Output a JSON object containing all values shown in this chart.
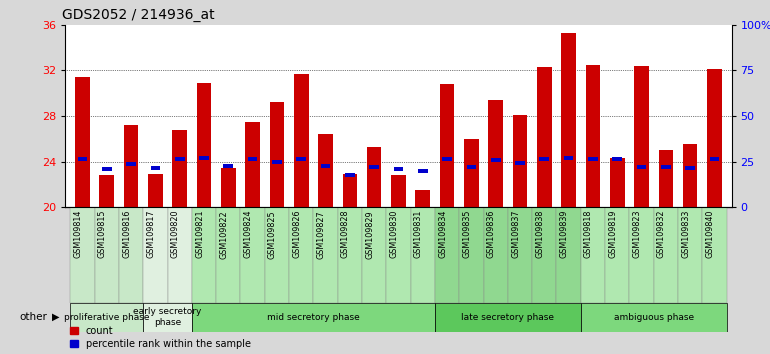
{
  "title": "GDS2052 / 214936_at",
  "samples": [
    "GSM109814",
    "GSM109815",
    "GSM109816",
    "GSM109817",
    "GSM109820",
    "GSM109821",
    "GSM109822",
    "GSM109824",
    "GSM109825",
    "GSM109826",
    "GSM109827",
    "GSM109828",
    "GSM109829",
    "GSM109830",
    "GSM109831",
    "GSM109834",
    "GSM109835",
    "GSM109836",
    "GSM109837",
    "GSM109838",
    "GSM109839",
    "GSM109818",
    "GSM109819",
    "GSM109823",
    "GSM109832",
    "GSM109833",
    "GSM109840"
  ],
  "count": [
    31.4,
    22.8,
    27.2,
    22.9,
    26.8,
    30.9,
    23.4,
    27.5,
    29.2,
    31.7,
    26.4,
    22.9,
    25.3,
    22.8,
    21.5,
    30.8,
    26.0,
    29.4,
    28.1,
    32.3,
    35.3,
    32.5,
    24.3,
    32.4,
    25.0,
    25.5,
    32.1
  ],
  "percentile": [
    24.2,
    23.3,
    23.8,
    23.4,
    24.2,
    24.3,
    23.6,
    24.2,
    24.0,
    24.2,
    23.6,
    22.8,
    23.5,
    23.3,
    23.2,
    24.2,
    23.5,
    24.1,
    23.9,
    24.2,
    24.3,
    24.2,
    24.2,
    23.5,
    23.5,
    23.4,
    24.2
  ],
  "phases": [
    {
      "label": "proliferative phase",
      "start": 0,
      "end": 3,
      "color": "#c8e8c8"
    },
    {
      "label": "early secretory\nphase",
      "start": 3,
      "end": 5,
      "color": "#e0f0e0"
    },
    {
      "label": "mid secretory phase",
      "start": 5,
      "end": 15,
      "color": "#7dd87d"
    },
    {
      "label": "late secretory phase",
      "start": 15,
      "end": 21,
      "color": "#5cc85c"
    },
    {
      "label": "ambiguous phase",
      "start": 21,
      "end": 27,
      "color": "#7dd87d"
    }
  ],
  "phase_tick_colors": [
    "#c8e8c8",
    "#c8e8c8",
    "#c8e8c8",
    "#e0f0e0",
    "#e0f0e0",
    "#b0e8b0",
    "#b0e8b0",
    "#b0e8b0",
    "#b0e8b0",
    "#b0e8b0",
    "#b0e8b0",
    "#b0e8b0",
    "#b0e8b0",
    "#b0e8b0",
    "#b0e8b0",
    "#90d890",
    "#90d890",
    "#90d890",
    "#90d890",
    "#90d890",
    "#90d890",
    "#b0e8b0",
    "#b0e8b0",
    "#b0e8b0",
    "#b0e8b0",
    "#b0e8b0",
    "#b0e8b0"
  ],
  "ylim_left": [
    20,
    36
  ],
  "ylim_right": [
    0,
    100
  ],
  "yticks_left": [
    20,
    24,
    28,
    32,
    36
  ],
  "yticks_right": [
    0,
    25,
    50,
    75,
    100
  ],
  "ytick_labels_right": [
    "0",
    "25",
    "50",
    "75",
    "100%"
  ],
  "bar_color": "#cc0000",
  "percentile_color": "#0000cc",
  "background_color": "#d8d8d8",
  "plot_bg": "#ffffff",
  "title_fontsize": 10,
  "other_label": "other"
}
